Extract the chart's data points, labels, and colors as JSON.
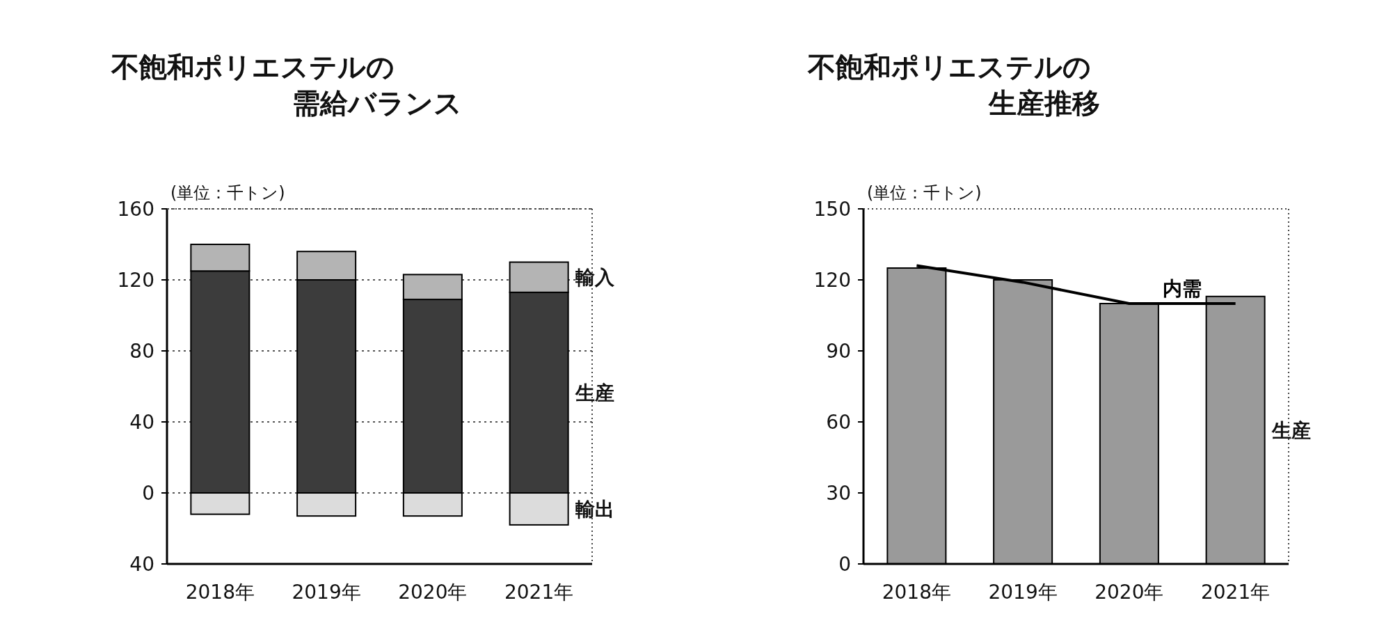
{
  "chart_data": [
    {
      "type": "bar",
      "title": "不飽和ポリエステルの需給バランス",
      "annotations": [
        "(単位：千トン)"
      ],
      "categories": [
        "2018年",
        "2019年",
        "2020年",
        "2021年"
      ],
      "stacked": true,
      "series": [
        {
          "name": "生産",
          "color": "#3c3c3c",
          "values": [
            125,
            120,
            109,
            113
          ]
        },
        {
          "name": "輸入",
          "color": "#b4b4b4",
          "values": [
            15,
            16,
            14,
            17
          ]
        },
        {
          "name": "輸出",
          "color": "#dcdcdc",
          "values": [
            -12,
            -13,
            -13,
            -18
          ]
        }
      ],
      "ylim": [
        -40,
        160
      ],
      "yticks": [
        {
          "value": -40,
          "label": "40"
        },
        0,
        40,
        80,
        120,
        160
      ],
      "grid": "y"
    },
    {
      "type": "bar",
      "title": "不飽和ポリエステルの生産推移",
      "annotations": [
        "(単位：千トン)"
      ],
      "categories": [
        "2018年",
        "2019年",
        "2020年",
        "2021年"
      ],
      "series": [
        {
          "name": "生産",
          "color": "#9a9a9a",
          "values": [
            125,
            120,
            110,
            113
          ]
        },
        {
          "name": "内需",
          "type": "line",
          "color": "#000000",
          "values": [
            126,
            119,
            110,
            110
          ]
        }
      ],
      "ylim": [
        0,
        150
      ],
      "yticks": [
        0,
        30,
        60,
        90,
        120,
        150
      ],
      "grid": false,
      "marker": "none"
    }
  ]
}
